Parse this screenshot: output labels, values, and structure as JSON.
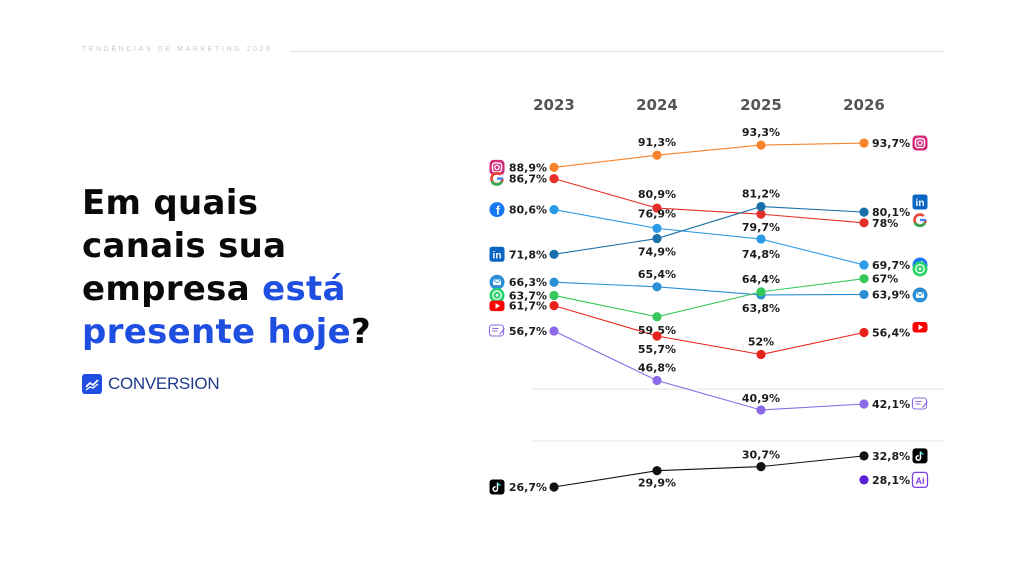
{
  "header": {
    "kicker": "TENDÊNCIAS DE MARKETING 2026"
  },
  "headline": {
    "part1": "Em quais",
    "part2": "canais sua",
    "part3": "empresa ",
    "highlight1": "está",
    "highlight2": "presente hoje",
    "end": "?",
    "highlight_color": "#1f4fe0"
  },
  "brand": {
    "name": "CONVERSION",
    "icon": "trend-chart-icon"
  },
  "chart_data": {
    "type": "line",
    "x": [
      "2023",
      "2024",
      "2025",
      "2026"
    ],
    "series": [
      {
        "key": "instagram",
        "icon": "instagram-icon",
        "color": "#f7842a",
        "values": [
          88.9,
          91.3,
          93.3,
          93.7
        ],
        "labels": [
          "88,9%",
          "91,3%",
          "93,3%",
          "93,7%"
        ]
      },
      {
        "key": "google",
        "icon": "google-icon",
        "color": "#e5302a",
        "values": [
          86.7,
          80.9,
          79.7,
          78
        ],
        "labels": [
          "86,7%",
          "80,9%",
          "79,7%",
          "78%"
        ]
      },
      {
        "key": "facebook",
        "icon": "facebook-icon",
        "color": "#2b9be8",
        "values": [
          80.6,
          76.9,
          74.8,
          69.7
        ],
        "labels": [
          "80,6%",
          "76,9%",
          "74,8%",
          "69,7%"
        ]
      },
      {
        "key": "linkedin",
        "icon": "linkedin-icon",
        "color": "#1a6fa8",
        "values": [
          71.8,
          74.9,
          81.2,
          80.1
        ],
        "labels": [
          "71,8%",
          "74,9%",
          "81,2%",
          "80,1%"
        ]
      },
      {
        "key": "email",
        "icon": "email-icon",
        "color": "#2b8fd6",
        "values": [
          66.3,
          65.4,
          63.8,
          63.9
        ],
        "labels": [
          "66,3%",
          "65,4%",
          "63,8%",
          "63,9%"
        ]
      },
      {
        "key": "whatsapp",
        "icon": "whatsapp-icon",
        "color": "#36c85a",
        "values": [
          63.7,
          59.5,
          64.4,
          67
        ],
        "labels": [
          "63,7%",
          "59,5%",
          "64,4%",
          "67%"
        ]
      },
      {
        "key": "youtube",
        "icon": "youtube-icon",
        "color": "#e8221b",
        "values": [
          61.7,
          55.7,
          52,
          56.4
        ],
        "labels": [
          "61,7%",
          "55,7%",
          "52%",
          "56,4%"
        ]
      },
      {
        "key": "blog",
        "icon": "blog-icon",
        "color": "#8a6ae6",
        "values": [
          56.7,
          46.8,
          40.9,
          42.1
        ],
        "labels": [
          "56,7%",
          "46,8%",
          "40,9%",
          "42,1%"
        ]
      },
      {
        "key": "tiktok",
        "icon": "tiktok-icon",
        "color": "#111111",
        "values": [
          26.7,
          29.9,
          30.7,
          32.8
        ],
        "labels": [
          "26,7%",
          "29,9%",
          "30,7%",
          "32,8%"
        ]
      },
      {
        "key": "ai",
        "icon": "ai-icon",
        "color": "#5b1fd6",
        "values": [
          null,
          null,
          null,
          28.1
        ],
        "labels": [
          "",
          "",
          "",
          "28,1%"
        ]
      }
    ],
    "grid": true,
    "legend": "icons next to values"
  }
}
